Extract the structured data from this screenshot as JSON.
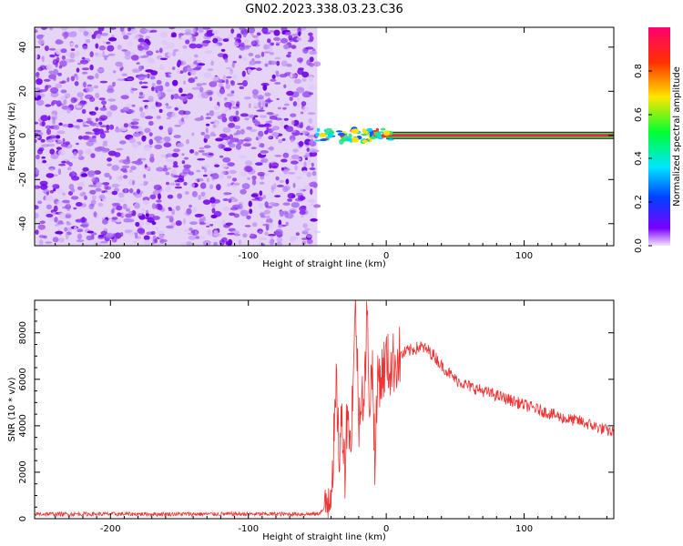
{
  "title": "GN02.2023.338.03.23.C36",
  "chart_data": [
    {
      "type": "heatmap",
      "xlabel": "Height of straight line (km)",
      "ylabel": "Frequency (Hz)",
      "xlim": [
        -255,
        165
      ],
      "ylim": [
        -50,
        49
      ],
      "x_ticks": [
        -200,
        -100,
        0,
        100
      ],
      "y_ticks": [
        -40,
        -20,
        0,
        20,
        40
      ],
      "noise_region_x": [
        -255,
        -50
      ],
      "signal_line_frequency": 0,
      "colorbar": {
        "label": "Normalized spectral amplitude",
        "range": [
          0,
          1
        ],
        "ticks": [
          "0.0",
          "0.2",
          "0.4",
          "0.6",
          "0.8"
        ],
        "tick_values": [
          0.0,
          0.2,
          0.4,
          0.6,
          0.8
        ]
      }
    },
    {
      "type": "line",
      "xlabel": "Height of straight line (km)",
      "ylabel": "SNR (10 * v/v)",
      "xlim": [
        -255,
        165
      ],
      "ylim": [
        0,
        9400
      ],
      "x_ticks": [
        -200,
        -100,
        0,
        100
      ],
      "y_ticks": [
        0,
        2000,
        4000,
        6000,
        8000
      ],
      "color": "#ee3333",
      "series": [
        {
          "x": [
            -255,
            -200,
            -150,
            -100,
            -50,
            -45,
            -40,
            -38,
            -36,
            -34,
            -32,
            -30,
            -28,
            -26,
            -24,
            -22,
            -20,
            -18,
            -16,
            -14,
            -12,
            -10,
            -8,
            -6,
            -4,
            -2,
            0,
            2,
            5,
            10,
            15,
            20,
            25,
            30,
            35,
            40,
            45,
            50,
            60,
            70,
            80,
            90,
            100,
            110,
            120,
            130,
            140,
            150,
            160,
            165
          ],
          "y": [
            200,
            200,
            200,
            200,
            200,
            400,
            1500,
            3200,
            5600,
            2600,
            4500,
            2200,
            5200,
            2800,
            6200,
            9200,
            4000,
            5900,
            4800,
            8800,
            5000,
            6600,
            2200,
            6500,
            6000,
            6400,
            6900,
            6500,
            6700,
            7000,
            7200,
            7300,
            7400,
            7250,
            7000,
            6600,
            6300,
            6000,
            5700,
            5500,
            5300,
            5100,
            4900,
            4700,
            4500,
            4300,
            4200,
            4000,
            3800,
            3700
          ]
        }
      ]
    }
  ]
}
